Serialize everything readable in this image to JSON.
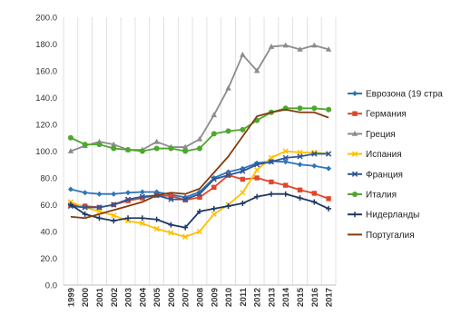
{
  "chart_data": {
    "type": "line",
    "x": [
      "1999",
      "2000",
      "2001",
      "2002",
      "2003",
      "2004",
      "2005",
      "2006",
      "2007",
      "2008",
      "2009",
      "2010",
      "2011",
      "2012",
      "2013",
      "2014",
      "2015",
      "2016",
      "2017"
    ],
    "ylim": [
      0,
      200
    ],
    "yticks": [
      "0.0",
      "20.0",
      "40.0",
      "60.0",
      "80.0",
      "100.0",
      "120.0",
      "140.0",
      "160.0",
      "180.0",
      "200.0"
    ],
    "grid": "vertical",
    "legend": "right",
    "series": [
      {
        "name": "Еврозона (19 стра",
        "color": "#2e75b6",
        "marker": "diamond",
        "values": [
          71.5,
          69,
          68,
          68,
          69,
          69.5,
          69.5,
          67.5,
          65.5,
          69.5,
          80,
          84.5,
          87,
          91,
          92.5,
          92,
          90,
          89,
          87
        ]
      },
      {
        "name": "Германия",
        "color": "#e0462a",
        "marker": "square",
        "values": [
          60,
          59,
          58,
          60,
          63,
          65,
          67,
          66.5,
          63.5,
          65.5,
          73,
          82,
          79,
          80,
          77,
          74.5,
          71,
          68.5,
          64.5
        ]
      },
      {
        "name": "Греция",
        "color": "#8c8c8c",
        "marker": "triangle",
        "values": [
          100,
          104,
          107,
          105,
          101,
          101,
          107,
          103,
          103,
          109,
          127,
          147,
          172,
          160,
          178,
          179,
          176,
          179,
          176
        ]
      },
      {
        "name": "Испания",
        "color": "#ffc000",
        "marker": "x",
        "values": [
          62,
          58,
          55,
          52,
          48,
          46,
          42,
          39,
          36,
          40,
          53,
          60,
          69,
          86,
          95,
          100,
          99,
          99,
          98
        ]
      },
      {
        "name": "Франция",
        "color": "#2f5597",
        "marker": "x",
        "values": [
          59,
          58,
          58,
          60,
          64,
          66,
          67,
          64,
          64,
          68,
          79,
          82,
          85,
          90,
          92,
          95,
          96,
          98,
          98
        ]
      },
      {
        "name": "Италия",
        "color": "#4ea72e",
        "marker": "circle",
        "values": [
          110,
          105,
          105,
          102,
          101,
          100,
          102,
          102,
          100,
          102,
          113,
          115,
          116,
          123,
          129,
          132,
          132,
          132,
          131
        ]
      },
      {
        "name": "Нидерланды",
        "color": "#1f3864",
        "marker": "plus",
        "values": [
          60,
          53,
          50,
          48,
          50,
          50,
          49,
          45,
          43,
          55,
          57,
          59,
          61,
          66,
          68,
          68,
          65,
          62,
          57
        ]
      },
      {
        "name": "Португалия",
        "color": "#843c0c",
        "marker": "none",
        "values": [
          51,
          50,
          53,
          56,
          59,
          62,
          67,
          69,
          68,
          72,
          84,
          96,
          111,
          126,
          129,
          131,
          129,
          129,
          125
        ]
      }
    ]
  }
}
